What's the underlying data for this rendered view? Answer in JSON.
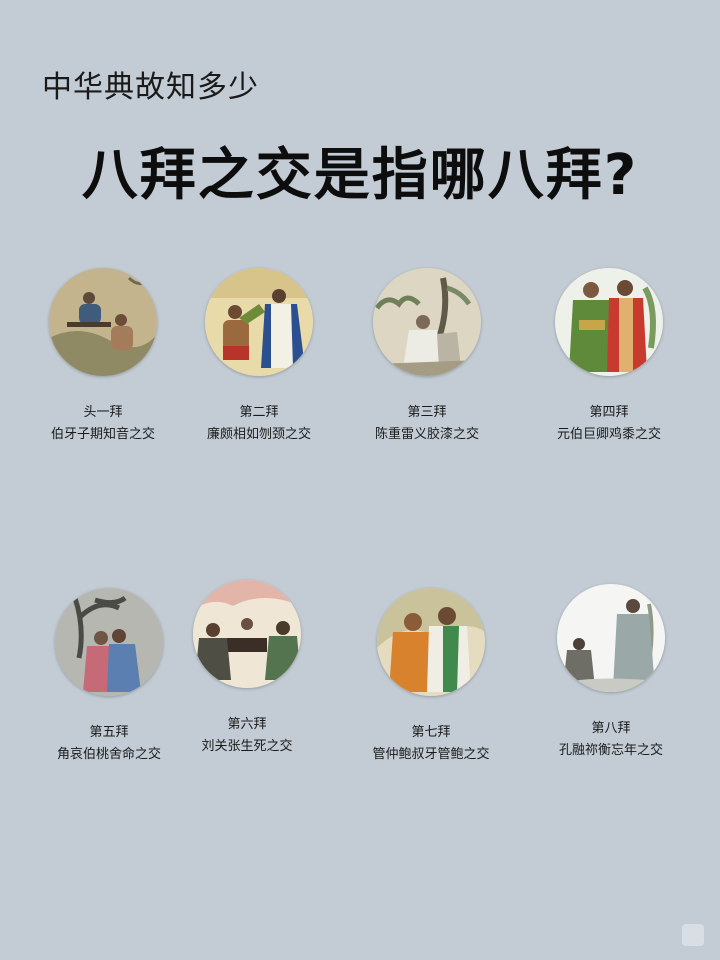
{
  "header": {
    "subtitle": "中华典故知多少",
    "title": "八拜之交是指哪八拜?"
  },
  "items": [
    {
      "rank": "头一拜",
      "story": "伯牙子期知音之交",
      "bg": "#bfae86"
    },
    {
      "rank": "第二拜",
      "story": "廉颇相如刎颈之交",
      "bg": "#e8d9a8"
    },
    {
      "rank": "第三拜",
      "story": "陈重雷义胶漆之交",
      "bg": "#d9d2bf"
    },
    {
      "rank": "第四拜",
      "story": "元伯巨卿鸡黍之交",
      "bg": "#e9ece6"
    },
    {
      "rank": "第五拜",
      "story": "角哀伯桃舍命之交",
      "bg": "#b7b8b2"
    },
    {
      "rank": "第六拜",
      "story": "刘关张生死之交",
      "bg": "#efe6d8"
    },
    {
      "rank": "第七拜",
      "story": "管仲鲍叔牙管鲍之交",
      "bg": "#e6dcc0"
    },
    {
      "rank": "第八拜",
      "story": "孔融祢衡忘年之交",
      "bg": "#f4f4f2"
    }
  ]
}
